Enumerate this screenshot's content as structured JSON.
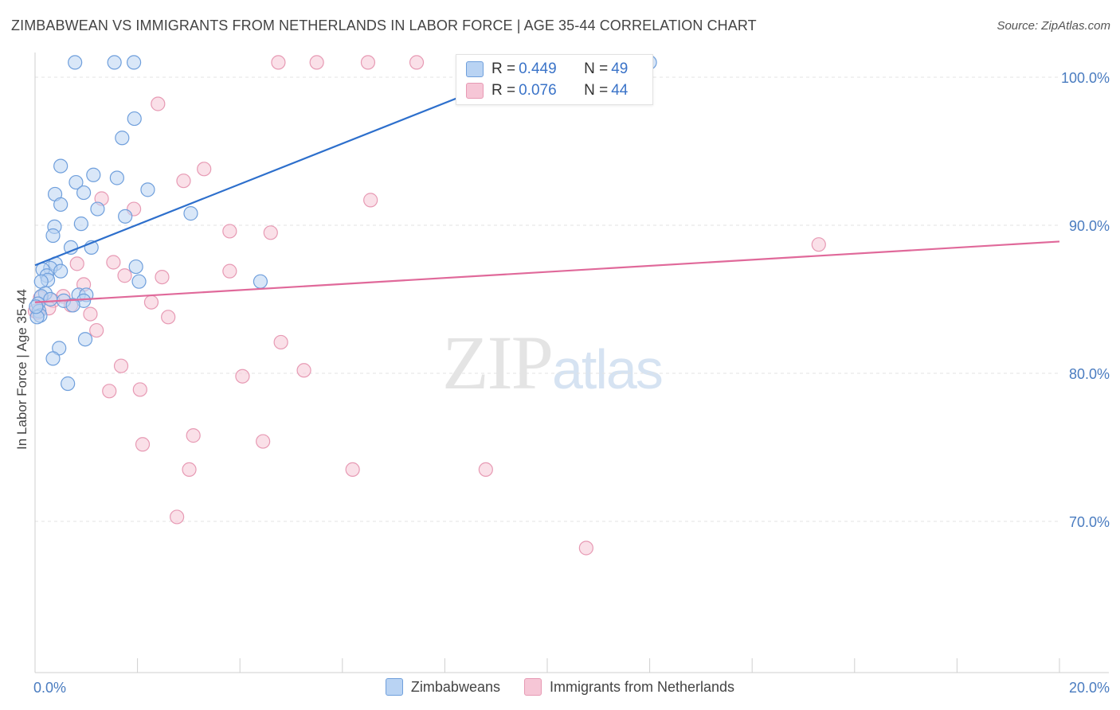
{
  "header": {
    "title": "ZIMBABWEAN VS IMMIGRANTS FROM NETHERLANDS IN LABOR FORCE | AGE 35-44 CORRELATION CHART",
    "source": "Source: ZipAtlas.com"
  },
  "watermark": {
    "zip": "ZIP",
    "atlas": "atlas"
  },
  "stats": [
    {
      "r_label": "R =",
      "r_value": "0.449",
      "n_label": "N =",
      "n_value": "49"
    },
    {
      "r_label": "R =",
      "r_value": "0.076",
      "n_label": "N =",
      "n_value": "44"
    }
  ],
  "legend": [
    {
      "label": "Zimbabweans"
    },
    {
      "label": "Immigrants from Netherlands"
    }
  ],
  "colors": {
    "blue_fill": "#b9d3f3",
    "blue_stroke": "#6f9fdc",
    "blue_line": "#2d6fcc",
    "pink_fill": "#f6c6d6",
    "pink_stroke": "#e79ab4",
    "pink_line": "#e0699a",
    "grid": "#e3e3e3",
    "tick_text": "#4a7cc0"
  },
  "chart_data": {
    "type": "scatter",
    "title": "ZIMBABWEAN VS IMMIGRANTS FROM NETHERLANDS IN LABOR FORCE | AGE 35-44 CORRELATION CHART",
    "xlabel": "",
    "ylabel": "In Labor Force | Age 35-44",
    "xlim": [
      0,
      20
    ],
    "ylim": [
      60,
      101.5
    ],
    "x_tick_labels": [
      {
        "value": 0,
        "label": "0.0%"
      },
      {
        "value": 20,
        "label": "20.0%"
      }
    ],
    "y_tick_labels": [
      {
        "value": 100,
        "label": "100.0%"
      },
      {
        "value": 90,
        "label": "90.0%"
      },
      {
        "value": 80,
        "label": "80.0%"
      },
      {
        "value": 70,
        "label": "70.0%"
      }
    ],
    "x_minor_ticks": [
      0,
      2,
      4,
      6,
      8,
      10,
      12,
      14,
      16,
      18,
      20
    ],
    "series": [
      {
        "name": "Zimbabweans",
        "trend": {
          "x": [
            0,
            10
          ],
          "y": [
            87.3,
            101
          ]
        },
        "points": [
          {
            "x": 0.78,
            "y": 101
          },
          {
            "x": 1.55,
            "y": 101
          },
          {
            "x": 1.93,
            "y": 101
          },
          {
            "x": 12.0,
            "y": 101
          },
          {
            "x": 1.94,
            "y": 97.2
          },
          {
            "x": 1.7,
            "y": 95.9
          },
          {
            "x": 0.5,
            "y": 94
          },
          {
            "x": 1.14,
            "y": 93.4
          },
          {
            "x": 1.6,
            "y": 93.2
          },
          {
            "x": 0.8,
            "y": 92.9
          },
          {
            "x": 2.2,
            "y": 92.4
          },
          {
            "x": 0.95,
            "y": 92.2
          },
          {
            "x": 0.39,
            "y": 92.1
          },
          {
            "x": 0.5,
            "y": 91.4
          },
          {
            "x": 1.22,
            "y": 91.1
          },
          {
            "x": 1.76,
            "y": 90.6
          },
          {
            "x": 3.04,
            "y": 90.8
          },
          {
            "x": 0.9,
            "y": 90.1
          },
          {
            "x": 0.38,
            "y": 89.9
          },
          {
            "x": 0.35,
            "y": 89.3
          },
          {
            "x": 1.1,
            "y": 88.5
          },
          {
            "x": 0.7,
            "y": 88.5
          },
          {
            "x": 0.4,
            "y": 87.4
          },
          {
            "x": 0.3,
            "y": 87.1
          },
          {
            "x": 0.15,
            "y": 87
          },
          {
            "x": 0.5,
            "y": 86.9
          },
          {
            "x": 1.97,
            "y": 87.2
          },
          {
            "x": 0.23,
            "y": 86.6
          },
          {
            "x": 0.25,
            "y": 86.3
          },
          {
            "x": 0.12,
            "y": 86.2
          },
          {
            "x": 2.03,
            "y": 86.2
          },
          {
            "x": 4.4,
            "y": 86.2
          },
          {
            "x": 0.2,
            "y": 85.4
          },
          {
            "x": 0.85,
            "y": 85.3
          },
          {
            "x": 1.0,
            "y": 85.3
          },
          {
            "x": 0.12,
            "y": 85.2
          },
          {
            "x": 0.3,
            "y": 85
          },
          {
            "x": 0.56,
            "y": 84.9
          },
          {
            "x": 0.95,
            "y": 84.9
          },
          {
            "x": 0.74,
            "y": 84.6
          },
          {
            "x": 0.06,
            "y": 84.7
          },
          {
            "x": 0.08,
            "y": 84.2
          },
          {
            "x": 0.1,
            "y": 83.9
          },
          {
            "x": 0.04,
            "y": 83.8
          },
          {
            "x": 0.98,
            "y": 82.3
          },
          {
            "x": 0.47,
            "y": 81.7
          },
          {
            "x": 0.35,
            "y": 81
          },
          {
            "x": 0.64,
            "y": 79.3
          },
          {
            "x": 0.02,
            "y": 84.5
          }
        ]
      },
      {
        "name": "Immigrants from Netherlands",
        "trend": {
          "x": [
            0,
            20
          ],
          "y": [
            84.8,
            88.9
          ]
        },
        "points": [
          {
            "x": 4.75,
            "y": 101
          },
          {
            "x": 5.5,
            "y": 101
          },
          {
            "x": 6.5,
            "y": 101
          },
          {
            "x": 7.45,
            "y": 101
          },
          {
            "x": 2.4,
            "y": 98.2
          },
          {
            "x": 3.3,
            "y": 93.8
          },
          {
            "x": 2.9,
            "y": 93
          },
          {
            "x": 1.3,
            "y": 91.8
          },
          {
            "x": 1.93,
            "y": 91.1
          },
          {
            "x": 6.55,
            "y": 91.7
          },
          {
            "x": 3.8,
            "y": 89.6
          },
          {
            "x": 4.6,
            "y": 89.5
          },
          {
            "x": 15.3,
            "y": 88.7
          },
          {
            "x": 0.82,
            "y": 87.4
          },
          {
            "x": 1.53,
            "y": 87.5
          },
          {
            "x": 3.8,
            "y": 86.9
          },
          {
            "x": 1.75,
            "y": 86.6
          },
          {
            "x": 2.48,
            "y": 86.5
          },
          {
            "x": 0.95,
            "y": 86
          },
          {
            "x": 0.55,
            "y": 85.2
          },
          {
            "x": 0.1,
            "y": 85.1
          },
          {
            "x": 0.35,
            "y": 84.9
          },
          {
            "x": 2.27,
            "y": 84.8
          },
          {
            "x": 0.7,
            "y": 84.6
          },
          {
            "x": 0.27,
            "y": 84.4
          },
          {
            "x": 0.05,
            "y": 84.1
          },
          {
            "x": 1.08,
            "y": 84
          },
          {
            "x": 2.6,
            "y": 83.8
          },
          {
            "x": 1.2,
            "y": 82.9
          },
          {
            "x": 4.8,
            "y": 82.1
          },
          {
            "x": 1.68,
            "y": 80.5
          },
          {
            "x": 5.25,
            "y": 80.2
          },
          {
            "x": 4.05,
            "y": 79.8
          },
          {
            "x": 2.05,
            "y": 78.9
          },
          {
            "x": 1.45,
            "y": 78.8
          },
          {
            "x": 3.09,
            "y": 75.8
          },
          {
            "x": 4.45,
            "y": 75.4
          },
          {
            "x": 2.1,
            "y": 75.2
          },
          {
            "x": 3.01,
            "y": 73.5
          },
          {
            "x": 6.2,
            "y": 73.5
          },
          {
            "x": 8.8,
            "y": 73.5
          },
          {
            "x": 2.77,
            "y": 70.3
          },
          {
            "x": 10.76,
            "y": 68.2
          },
          {
            "x": 0.0,
            "y": 84.2
          }
        ]
      }
    ]
  }
}
